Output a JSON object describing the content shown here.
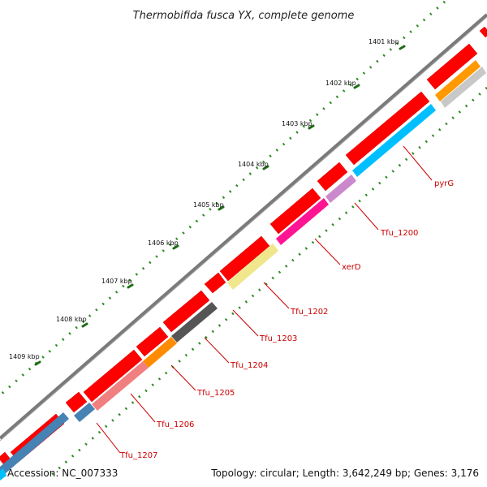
{
  "title": "Thermobifida fusca YX, complete genome",
  "ticks": [
    {
      "label": "1401 kbp"
    },
    {
      "label": "1402 kbp"
    },
    {
      "label": "1403 kbp"
    },
    {
      "label": "1404 kbp"
    },
    {
      "label": "1405 kbp"
    },
    {
      "label": "1406 kbp"
    },
    {
      "label": "1407 kbp"
    },
    {
      "label": "1408 kbp"
    },
    {
      "label": "1409 kbp"
    }
  ],
  "gene_labels": [
    {
      "label": "pyrG"
    },
    {
      "label": "Tfu_1200"
    },
    {
      "label": "xerD"
    },
    {
      "label": "Tfu_1202"
    },
    {
      "label": "Tfu_1203"
    },
    {
      "label": "Tfu_1204"
    },
    {
      "label": "Tfu_1205"
    },
    {
      "label": "Tfu_1206"
    },
    {
      "label": "Tfu_1207"
    }
  ],
  "colors": {
    "backbone": "#7a7a7a",
    "forward_cds": "#ff0000",
    "tick_major": "#2e8b22",
    "tick_minor": "#1c6e14",
    "label": "#cc0000"
  },
  "footer": {
    "accession": "Accession: NC_007333",
    "summary": "Topology: circular; Length: 3,642,249 bp; Genes: 3,176"
  }
}
